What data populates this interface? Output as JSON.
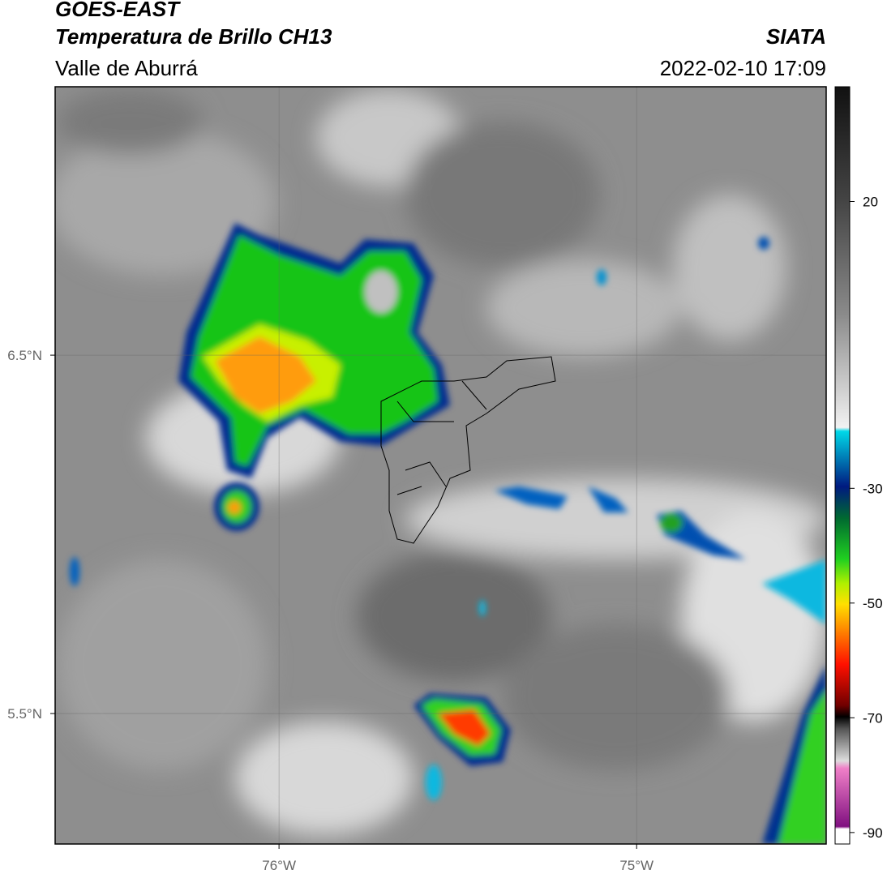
{
  "header": {
    "title": "GOES-EAST",
    "subtitle": "Temperatura de Brillo CH13",
    "region": "Valle de Aburrá",
    "source": "SIATA",
    "datetime": "2022-02-10 17:09"
  },
  "map": {
    "xlim": [
      -76.626,
      -74.47
    ],
    "ylim": [
      5.136,
      7.249
    ],
    "xticks": [
      {
        "value": -76,
        "label": "76°W"
      },
      {
        "value": -75,
        "label": "75°W"
      }
    ],
    "yticks": [
      {
        "value": 6.5,
        "label": "6.5°N"
      },
      {
        "value": 5.5,
        "label": "5.5°N"
      }
    ],
    "grid": true
  },
  "colorbar": {
    "clim": [
      -92,
      40
    ],
    "ticks": [
      20,
      -30,
      -50,
      -70,
      -90
    ]
  }
}
